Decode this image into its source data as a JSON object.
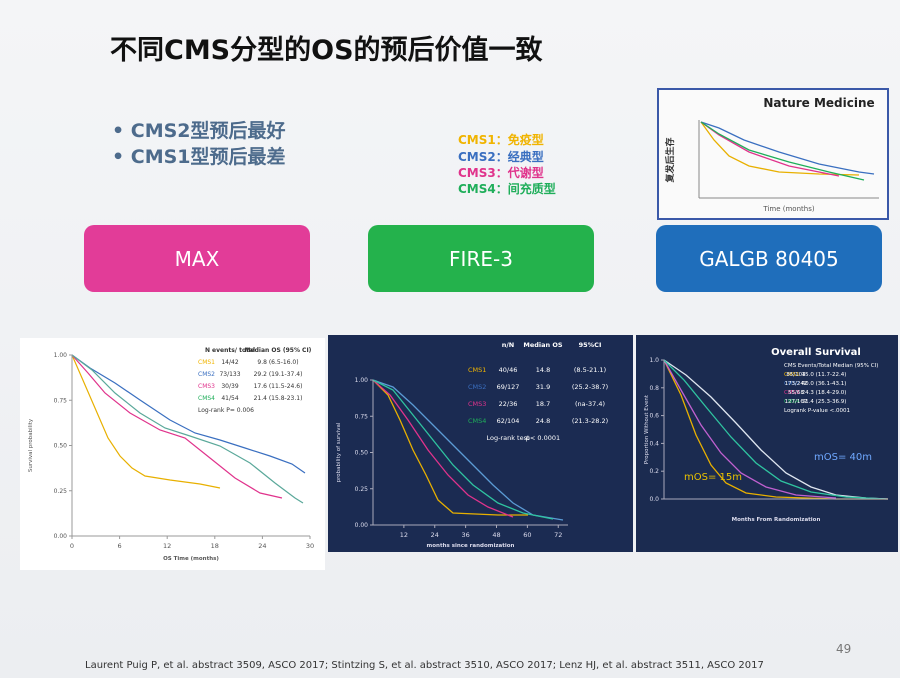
{
  "title": "不同CMS分型的OS的预后价值一致",
  "bullets": [
    "CMS2型预后最好",
    "CMS1型预后最差"
  ],
  "legend": [
    {
      "label": "CMS1：免疫型",
      "color": "#f0b400"
    },
    {
      "label": "CMS2：经典型",
      "color": "#3a6fc0"
    },
    {
      "label": "CMS3：代谢型",
      "color": "#e0338c"
    },
    {
      "label": "CMS4：间充质型",
      "color": "#1fae5a"
    }
  ],
  "inset": {
    "title": "Nature Medicine",
    "ylabel": "复发后生存",
    "xlabel": "Time (months)"
  },
  "trials": [
    "MAX",
    "FIRE-3",
    "GALGB 80405"
  ],
  "panels": [
    {
      "ylabel": "Survival probability",
      "xlabel": "OS Time (months)",
      "yticks": [
        "1.00",
        "0.75",
        "0.50",
        "0.25",
        "0.00"
      ],
      "xticks": [
        "0",
        "6",
        "12",
        "18",
        "24",
        "30"
      ],
      "header": [
        "N events/ total",
        "Median OS (95% CI)"
      ],
      "rows": [
        [
          "CMS1",
          "14/42",
          "9.8 (6.5-16.0)"
        ],
        [
          "CMS2",
          "73/133",
          "29.2 (19.1-37.4)"
        ],
        [
          "CMS3",
          "30/39",
          "17.6 (11.5-24.6)"
        ],
        [
          "CMS4",
          "41/54",
          "21.4 (15.8-23.1)"
        ]
      ],
      "note": "Log-rank P= 0.006"
    },
    {
      "ylabel": "probability of survival",
      "xlabel": "months since randomization",
      "yticks": [
        "1.00",
        "0.75",
        "0.50",
        "0.25",
        "0.00"
      ],
      "xticks": [
        "12",
        "24",
        "36",
        "48",
        "60",
        "72"
      ],
      "header": [
        "n/N",
        "Median OS",
        "95%CI"
      ],
      "rows": [
        [
          "CMS1",
          "40/46",
          "14.8",
          "(8.5-21.1)"
        ],
        [
          "CMS2",
          "69/127",
          "31.9",
          "(25.2-38.7)"
        ],
        [
          "CMS3",
          "22/36",
          "18.7",
          "(na-37.4)"
        ],
        [
          "CMS4",
          "62/104",
          "24.8",
          "(21.3-28.2)"
        ]
      ],
      "note": [
        "Log-rank test",
        "p< 0.0001"
      ]
    },
    {
      "title": "Overall Survival",
      "ylabel": "Proportion Without Event",
      "xlabel": "Months From Randomization",
      "yticks": [
        "1.0",
        "0.8",
        "0.6",
        "0.4",
        "0.2",
        "0.0"
      ],
      "header": "CMS  Events/Total  Median (95% CI)",
      "rows": [
        [
          "CMS1",
          "85/104",
          "15.0 (11.7-22.4)"
        ],
        [
          "CMS2",
          "173/242",
          "40.0 (36.1-43.1)"
        ],
        [
          "CMS3",
          "55/68",
          "24.3 (18.4-29.0)"
        ],
        [
          "CMS4",
          "127/167",
          "31.4 (25.3-36.9)"
        ]
      ],
      "note": "Logrank P-value <.0001",
      "annotations": [
        "mOS= 15m",
        "mOS= 40m"
      ]
    }
  ],
  "page_number": "49",
  "footnote": "Laurent Puig P, et al. abstract 3509, ASCO 2017; Stintzing S, et al. abstract 3510, ASCO 2017; Lenz HJ, et al. abstract 3511, ASCO 2017"
}
